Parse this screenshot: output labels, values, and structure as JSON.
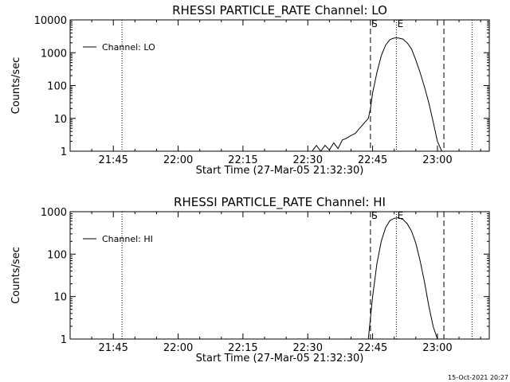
{
  "footer_timestamp": "15-Oct-2021 20:27",
  "chart_data": [
    {
      "type": "line",
      "title": "RHESSI PARTICLE_RATE Channel: LO",
      "xlabel": "Start Time (27-Mar-05 21:32:30)",
      "ylabel": "Counts/sec",
      "yscale": "log",
      "xlim": [
        "21:35:00",
        "23:12:00"
      ],
      "ylim": [
        1,
        10000
      ],
      "x_ticks": [
        "21:45",
        "22:00",
        "22:15",
        "22:30",
        "22:45",
        "23:00"
      ],
      "y_ticks": [
        "1",
        "10",
        "100",
        "1000",
        "10000"
      ],
      "legend": "top-left",
      "series": [
        {
          "name": "Channel: LO",
          "x": [
            "22:31:00",
            "22:32:00",
            "22:33:00",
            "22:34:00",
            "22:35:00",
            "22:36:00",
            "22:37:00",
            "22:38:00",
            "22:39:00",
            "22:40:00",
            "22:41:00",
            "22:42:00",
            "22:43:00",
            "22:44:00",
            "22:44:30",
            "22:45:00",
            "22:46:00",
            "22:47:00",
            "22:48:00",
            "22:49:00",
            "22:50:00",
            "22:51:00",
            "22:52:00",
            "22:53:00",
            "22:54:00",
            "22:55:00",
            "22:56:00",
            "22:57:00",
            "22:58:00",
            "22:59:00",
            "23:00:00",
            "23:01:00"
          ],
          "values": [
            1,
            1.5,
            1,
            1.5,
            1.1,
            1.8,
            1.2,
            2.2,
            2.5,
            3,
            3.5,
            5,
            7,
            10,
            20,
            60,
            250,
            800,
            1700,
            2500,
            2800,
            2800,
            2600,
            2000,
            1300,
            600,
            250,
            90,
            30,
            8,
            2,
            1
          ]
        }
      ],
      "markers": [
        {
          "label": "S",
          "time": "22:44:30",
          "style": "dashed"
        },
        {
          "label": "E",
          "time": "22:50:30",
          "style": "dotted"
        },
        {
          "label": "",
          "time": "21:47:00",
          "style": "dotted"
        },
        {
          "label": "",
          "time": "23:01:30",
          "style": "dashed"
        },
        {
          "label": "",
          "time": "23:08:00",
          "style": "dotted"
        }
      ]
    },
    {
      "type": "line",
      "title": "RHESSI PARTICLE_RATE Channel: HI",
      "xlabel": "Start Time (27-Mar-05 21:32:30)",
      "ylabel": "Counts/sec",
      "yscale": "log",
      "xlim": [
        "21:35:00",
        "23:12:00"
      ],
      "ylim": [
        1,
        1000
      ],
      "x_ticks": [
        "21:45",
        "22:00",
        "22:15",
        "22:30",
        "22:45",
        "23:00"
      ],
      "y_ticks": [
        "1",
        "10",
        "100",
        "1000"
      ],
      "legend": "top-left",
      "series": [
        {
          "name": "Channel: HI",
          "x": [
            "22:44:00",
            "22:45:00",
            "22:46:00",
            "22:47:00",
            "22:48:00",
            "22:49:00",
            "22:50:00",
            "22:51:00",
            "22:52:00",
            "22:53:00",
            "22:54:00",
            "22:55:00",
            "22:56:00",
            "22:57:00",
            "22:58:00",
            "22:59:00",
            "23:00:00"
          ],
          "values": [
            1,
            10,
            60,
            200,
            420,
            620,
            700,
            720,
            660,
            520,
            350,
            180,
            70,
            22,
            6,
            2,
            1
          ]
        }
      ],
      "markers": [
        {
          "label": "S",
          "time": "22:44:30",
          "style": "dashed"
        },
        {
          "label": "E",
          "time": "22:50:30",
          "style": "dotted"
        },
        {
          "label": "",
          "time": "21:47:00",
          "style": "dotted"
        },
        {
          "label": "",
          "time": "23:01:30",
          "style": "dashed"
        },
        {
          "label": "",
          "time": "23:08:00",
          "style": "dotted"
        }
      ]
    }
  ]
}
